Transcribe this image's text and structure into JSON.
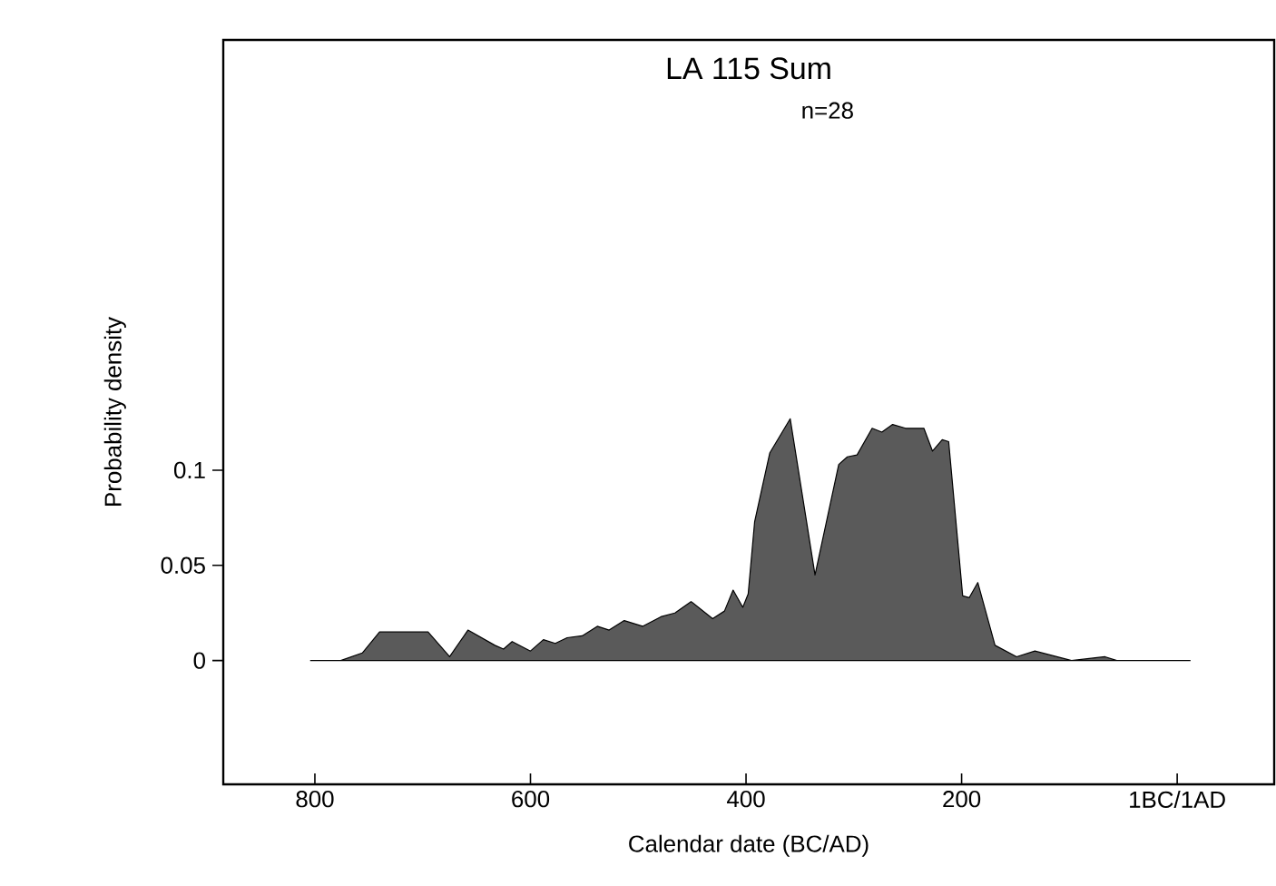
{
  "chart_data": {
    "type": "area",
    "title": "LA 115 Sum",
    "subtitle": "n=28",
    "xlabel": "Calendar date (BC/AD)",
    "ylabel": "Probability density",
    "x": [
      -804,
      -776,
      -756,
      -740,
      -695,
      -675,
      -658,
      -633,
      -625,
      -617,
      -600,
      -588,
      -577,
      -566,
      -552,
      -538,
      -527,
      -513,
      -496,
      -479,
      -466,
      -451,
      -431,
      -420,
      -412,
      -403,
      -398,
      -392,
      -378,
      -359,
      -336,
      -314,
      -306,
      -297,
      -283,
      -274,
      -264,
      -252,
      -235,
      -227,
      -218,
      -212,
      -199,
      -193,
      -185,
      -169,
      -149,
      -132,
      -98,
      -67,
      -56,
      12
    ],
    "series": [
      {
        "color": "#5a5a5a",
        "values": [
          0,
          0,
          0.004,
          0.015,
          0.015,
          0.002,
          0.016,
          0.008,
          0.006,
          0.01,
          0.005,
          0.011,
          0.009,
          0.012,
          0.013,
          0.018,
          0.016,
          0.021,
          0.018,
          0.023,
          0.025,
          0.031,
          0.022,
          0.026,
          0.037,
          0.028,
          0.035,
          0.073,
          0.109,
          0.127,
          0.045,
          0.103,
          0.107,
          0.108,
          0.122,
          0.12,
          0.124,
          0.122,
          0.122,
          0.11,
          0.116,
          0.115,
          0.034,
          0.033,
          0.041,
          0.008,
          0.002,
          0.005,
          0,
          0.002,
          0,
          0
        ]
      }
    ],
    "xlim": [
      -885,
      90
    ],
    "ylim": [
      -0.065,
      0.326
    ],
    "xticks": [
      {
        "value": -800,
        "label": "800"
      },
      {
        "value": -600,
        "label": "600"
      },
      {
        "value": -400,
        "label": "400"
      },
      {
        "value": -200,
        "label": "200"
      },
      {
        "value": 0,
        "label": "1BC/1AD"
      }
    ],
    "yticks": [
      0,
      0.05,
      0.1
    ]
  }
}
